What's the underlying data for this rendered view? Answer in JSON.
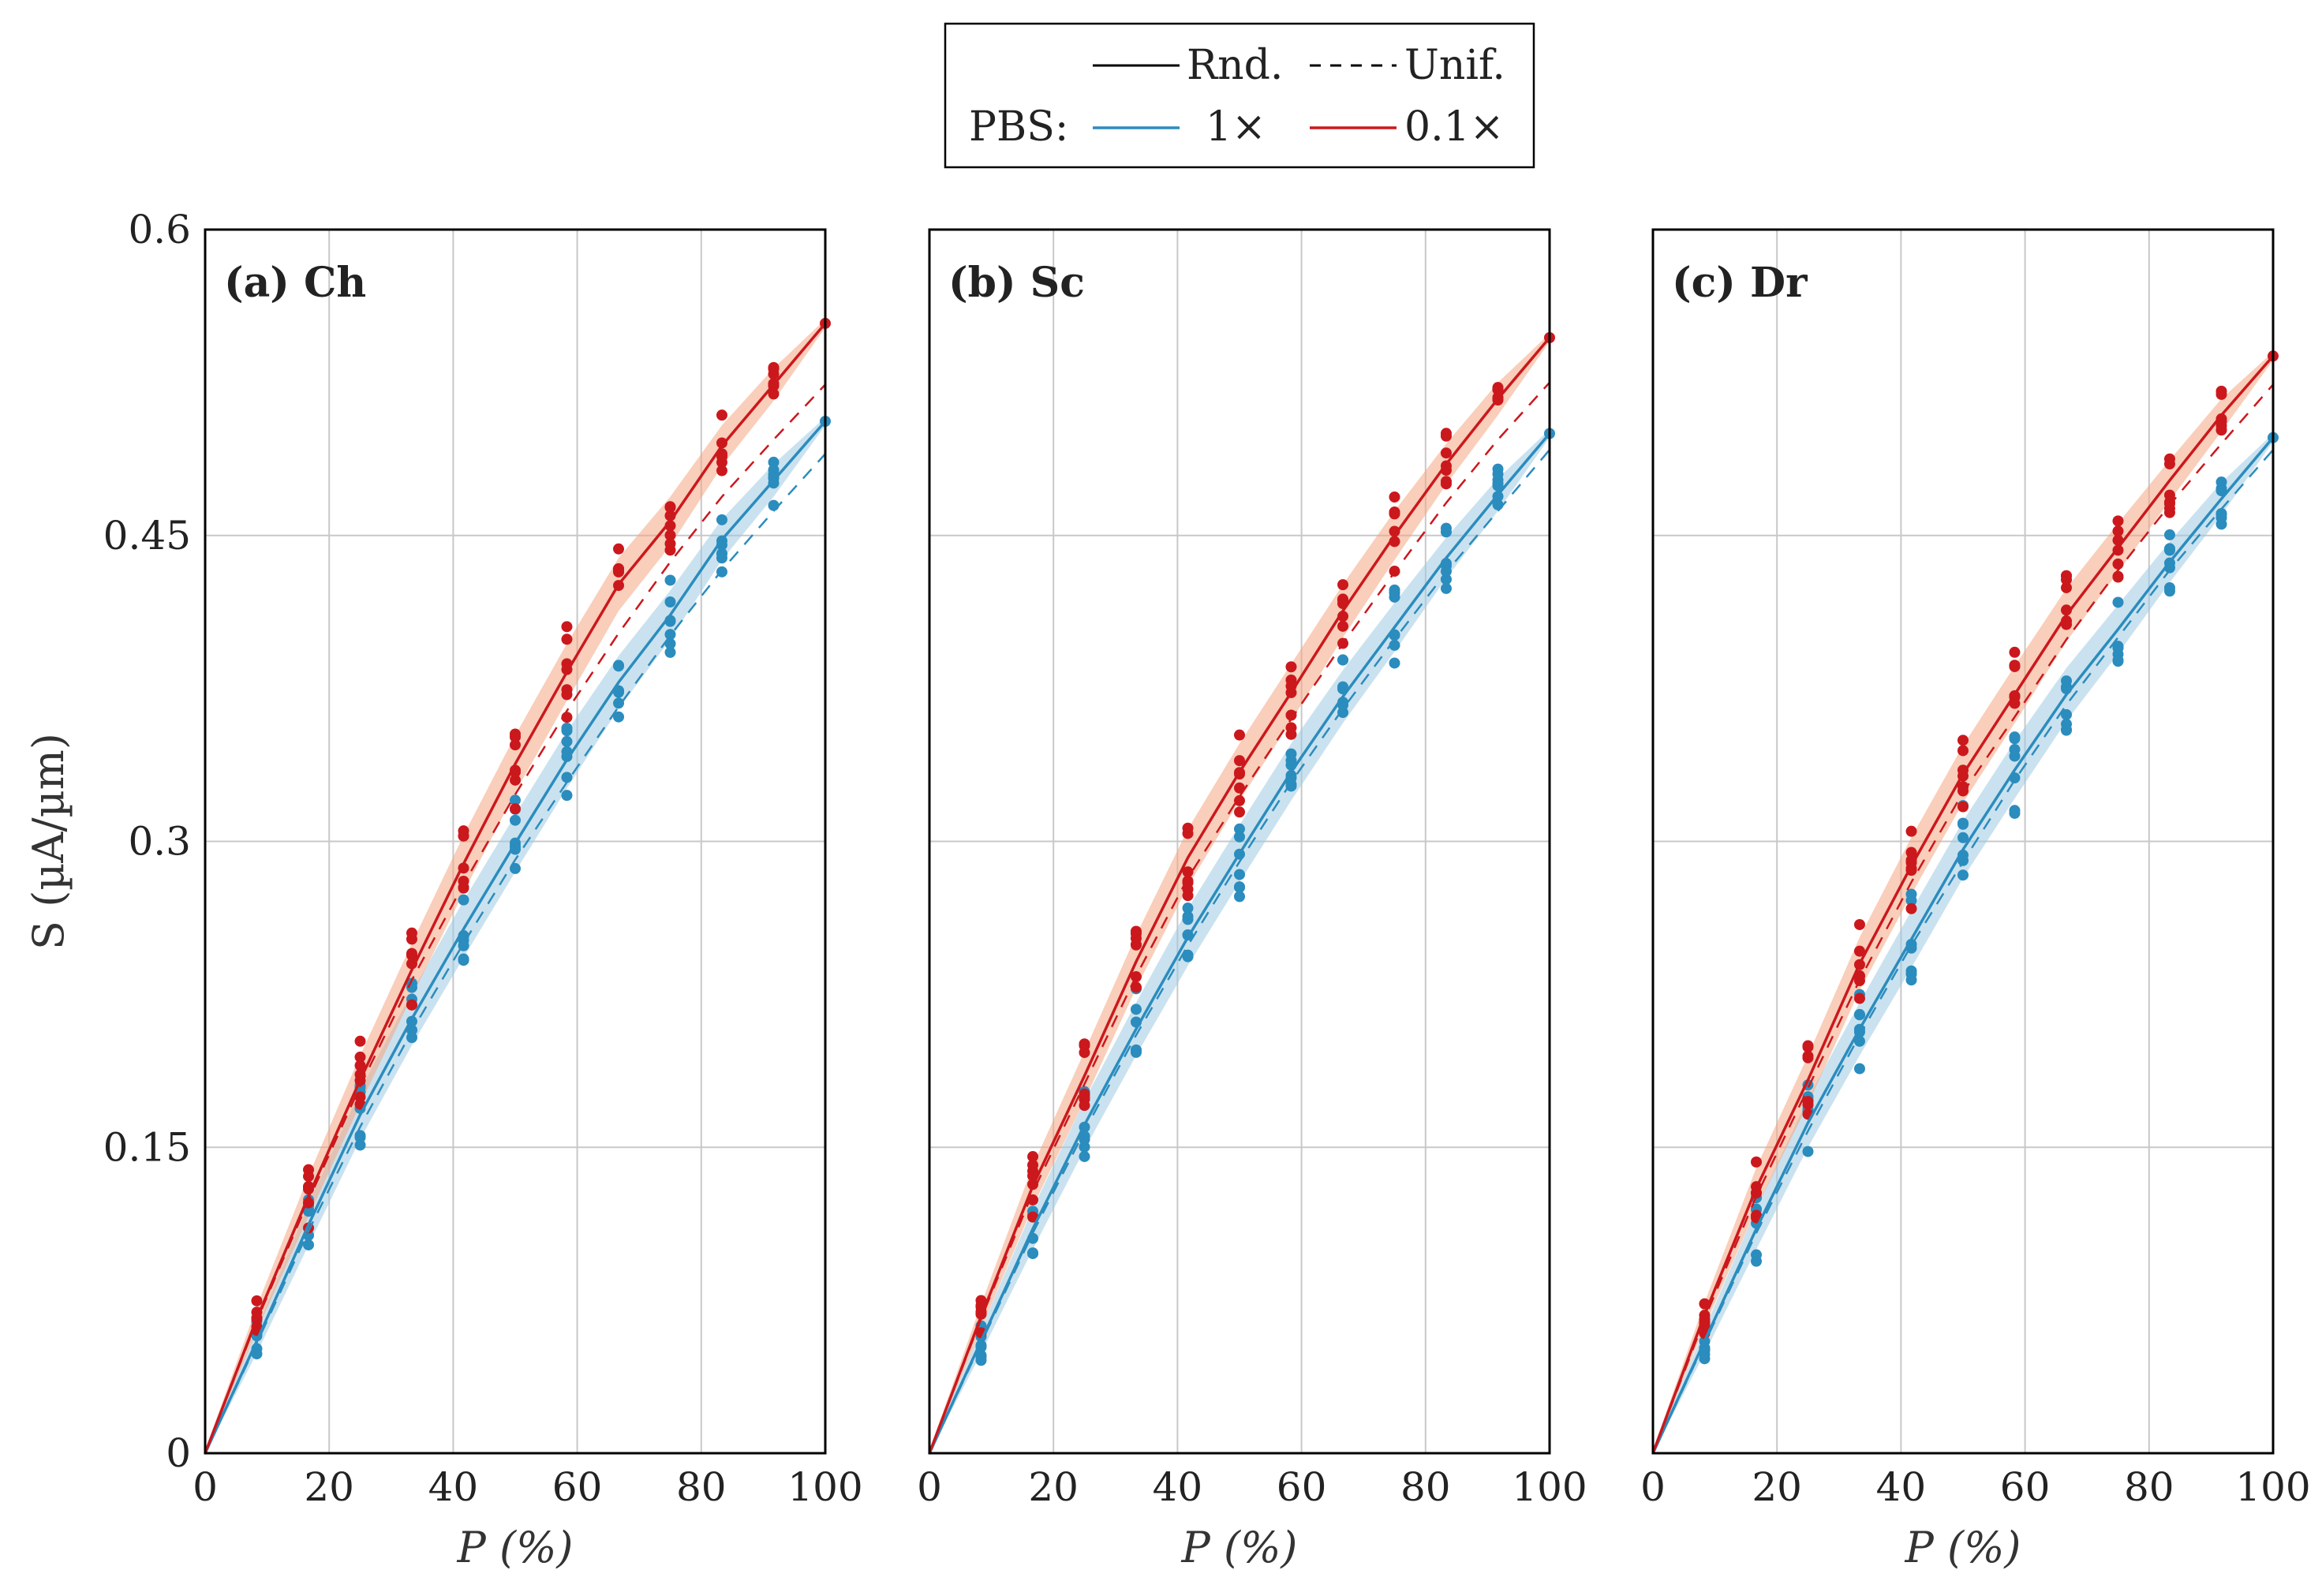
{
  "legend": {
    "rnd_label": "Rnd.",
    "unif_label": "Unif.",
    "pbs_label": "PBS:",
    "series_1x_label": "1×",
    "series_01x_label": "0.1×"
  },
  "colors": {
    "blue": "#2b8cbe",
    "red": "#cb181d",
    "blue_band": "#9ecae1",
    "red_band": "#f4a582",
    "grid": "#c8c8c8"
  },
  "chart_data": [
    {
      "type": "line",
      "panel_label": "(a) Ch",
      "xlabel": "P (%)",
      "ylabel": "S (µA/µm)",
      "xlim": [
        0,
        100
      ],
      "ylim": [
        0,
        0.6
      ],
      "xticks": [
        "0",
        "20",
        "40",
        "60",
        "80",
        "100"
      ],
      "yticks": [
        "0",
        "0.15",
        "0.3",
        "0.45",
        "0.6"
      ],
      "x": [
        0,
        8.33,
        16.67,
        25,
        33.33,
        41.67,
        50,
        58.33,
        66.67,
        75,
        83.33,
        91.67,
        100
      ],
      "series": [
        {
          "name": "1× Rnd.",
          "color": "blue",
          "style": "solid",
          "values": [
            0,
            0.055,
            0.112,
            0.166,
            0.213,
            0.257,
            0.299,
            0.34,
            0.378,
            0.411,
            0.448,
            0.477,
            0.506
          ]
        },
        {
          "name": "1× Unif.",
          "color": "blue",
          "style": "dashed",
          "values": [
            0,
            0.054,
            0.109,
            0.16,
            0.207,
            0.25,
            0.291,
            0.329,
            0.366,
            0.401,
            0.433,
            0.462,
            0.49
          ]
        },
        {
          "name": "0.1× Rnd.",
          "color": "red",
          "style": "solid",
          "values": [
            0,
            0.066,
            0.126,
            0.183,
            0.237,
            0.289,
            0.338,
            0.383,
            0.426,
            0.457,
            0.494,
            0.524,
            0.554
          ]
        },
        {
          "name": "0.1× Unif.",
          "color": "red",
          "style": "dashed",
          "values": [
            0,
            0.065,
            0.124,
            0.18,
            0.232,
            0.279,
            0.323,
            0.364,
            0.402,
            0.437,
            0.469,
            0.497,
            0.524
          ]
        }
      ]
    },
    {
      "type": "line",
      "panel_label": "(b) Sc",
      "xlabel": "P (%)",
      "ylabel": "",
      "xlim": [
        0,
        100
      ],
      "ylim": [
        0,
        0.6
      ],
      "xticks": [
        "0",
        "20",
        "40",
        "60",
        "80",
        "100"
      ],
      "yticks": [],
      "x": [
        0,
        8.33,
        16.67,
        25,
        33.33,
        41.67,
        50,
        58.33,
        66.67,
        75,
        83.33,
        91.67,
        100
      ],
      "series": [
        {
          "name": "1× Rnd.",
          "color": "blue",
          "style": "solid",
          "values": [
            0,
            0.055,
            0.11,
            0.161,
            0.208,
            0.253,
            0.294,
            0.334,
            0.371,
            0.405,
            0.439,
            0.47,
            0.5
          ]
        },
        {
          "name": "1× Unif.",
          "color": "blue",
          "style": "dashed",
          "values": [
            0,
            0.054,
            0.108,
            0.158,
            0.205,
            0.249,
            0.29,
            0.329,
            0.365,
            0.399,
            0.432,
            0.462,
            0.492
          ]
        },
        {
          "name": "0.1× Rnd.",
          "color": "red",
          "style": "solid",
          "values": [
            0,
            0.067,
            0.131,
            0.185,
            0.241,
            0.292,
            0.334,
            0.373,
            0.413,
            0.45,
            0.485,
            0.517,
            0.547
          ]
        },
        {
          "name": "0.1× Unif.",
          "color": "red",
          "style": "dashed",
          "values": [
            0,
            0.066,
            0.128,
            0.181,
            0.234,
            0.282,
            0.322,
            0.36,
            0.397,
            0.432,
            0.466,
            0.497,
            0.525
          ]
        }
      ]
    },
    {
      "type": "line",
      "panel_label": "(c) Dr",
      "xlabel": "P (%)",
      "ylabel": "",
      "xlim": [
        0,
        100
      ],
      "ylim": [
        0,
        0.6
      ],
      "xticks": [
        "0",
        "20",
        "40",
        "60",
        "80",
        "100"
      ],
      "yticks": [],
      "x": [
        0,
        8.33,
        16.67,
        25,
        33.33,
        41.67,
        50,
        58.33,
        66.67,
        75,
        83.33,
        91.67,
        100
      ],
      "series": [
        {
          "name": "1× Rnd.",
          "color": "blue",
          "style": "solid",
          "values": [
            0,
            0.055,
            0.11,
            0.162,
            0.208,
            0.252,
            0.296,
            0.335,
            0.372,
            0.404,
            0.437,
            0.468,
            0.498
          ]
        },
        {
          "name": "1× Unif.",
          "color": "blue",
          "style": "dashed",
          "values": [
            0,
            0.054,
            0.108,
            0.158,
            0.205,
            0.249,
            0.29,
            0.33,
            0.367,
            0.4,
            0.433,
            0.463,
            0.492
          ]
        },
        {
          "name": "0.1× Rnd.",
          "color": "red",
          "style": "solid",
          "values": [
            0,
            0.068,
            0.13,
            0.183,
            0.24,
            0.288,
            0.333,
            0.372,
            0.411,
            0.444,
            0.477,
            0.509,
            0.538
          ]
        },
        {
          "name": "0.1× Unif.",
          "color": "red",
          "style": "dashed",
          "values": [
            0,
            0.066,
            0.126,
            0.179,
            0.232,
            0.28,
            0.324,
            0.361,
            0.399,
            0.433,
            0.465,
            0.495,
            0.524
          ]
        }
      ]
    }
  ]
}
